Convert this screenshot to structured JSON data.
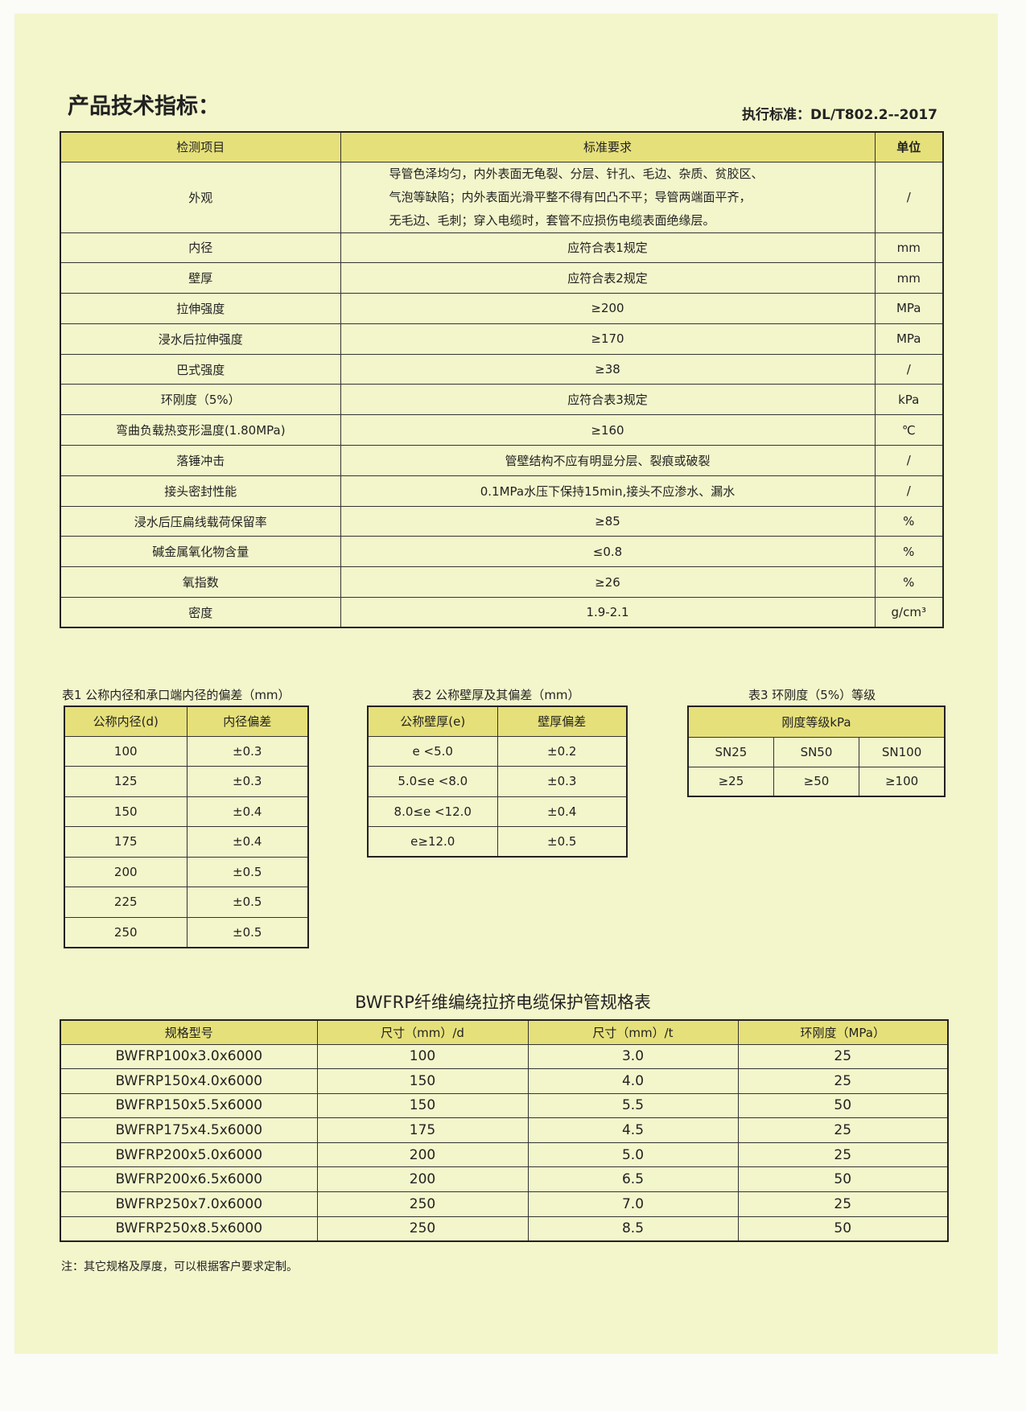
{
  "title": "产品技术指标：",
  "standard": "执行标准：DL/T802.2--2017",
  "colors": {
    "page": "#f3f6cb",
    "header": "#e6e07a"
  },
  "main_table": {
    "headers": [
      "检测项目",
      "标准要求",
      "单位"
    ],
    "appearance": {
      "item": "外观",
      "lines": [
        "导管色泽均匀，内外表面无龟裂、分层、针孔、毛边、杂质、贫胶区、",
        "气泡等缺陷；内外表面光滑平整不得有凹凸不平；导管两端面平齐，",
        "无毛边、毛刺；穿入电缆时，套管不应损伤电缆表面绝缘层。"
      ],
      "unit": "/"
    },
    "rows": [
      [
        "内径",
        "应符合表1规定",
        "mm"
      ],
      [
        "壁厚",
        "应符合表2规定",
        "mm"
      ],
      [
        "拉伸强度",
        "≥200",
        "MPa"
      ],
      [
        "浸水后拉伸强度",
        "≥170",
        "MPa"
      ],
      [
        "巴式强度",
        "≥38",
        "/"
      ],
      [
        "环刚度（5%）",
        "应符合表3规定",
        "kPa"
      ],
      [
        "弯曲负载热变形温度(1.80MPa)",
        "≥160",
        "℃"
      ],
      [
        "落锤冲击",
        "管壁结构不应有明显分层、裂痕或破裂",
        "/"
      ],
      [
        "接头密封性能",
        "0.1MPa水压下保持15min,接头不应渗水、漏水",
        "/"
      ],
      [
        "浸水后压扁线载荷保留率",
        "≥85",
        "%"
      ],
      [
        "碱金属氧化物含量",
        "≤0.8",
        "%"
      ],
      [
        "氧指数",
        "≥26",
        "%"
      ],
      [
        "密度",
        "1.9-2.1",
        "g/cm³"
      ]
    ]
  },
  "table1": {
    "caption": "表1 公称内径和承口端内径的偏差（mm）",
    "headers": [
      "公称内径(d)",
      "内径偏差"
    ],
    "rows": [
      [
        "100",
        "±0.3"
      ],
      [
        "125",
        "±0.3"
      ],
      [
        "150",
        "±0.4"
      ],
      [
        "175",
        "±0.4"
      ],
      [
        "200",
        "±0.5"
      ],
      [
        "225",
        "±0.5"
      ],
      [
        "250",
        "±0.5"
      ]
    ]
  },
  "table2": {
    "caption": "表2 公称壁厚及其偏差（mm）",
    "headers": [
      "公称壁厚(e)",
      "壁厚偏差"
    ],
    "rows": [
      [
        "e <5.0",
        "±0.2"
      ],
      [
        "5.0≤e <8.0",
        "±0.3"
      ],
      [
        "8.0≤e <12.0",
        "±0.4"
      ],
      [
        "e≥12.0",
        "±0.5"
      ]
    ]
  },
  "table3": {
    "caption": "表3 环刚度（5%）等级",
    "header": "刚度等级kPa",
    "grades": [
      "SN25",
      "SN50",
      "SN100"
    ],
    "values": [
      "≥25",
      "≥50",
      "≥100"
    ]
  },
  "spec_table": {
    "title": "BWFRP纤维编绕拉挤电缆保护管规格表",
    "headers": [
      "规格型号",
      "尺寸（mm）/d",
      "尺寸（mm）/t",
      "环刚度（MPa）"
    ],
    "rows": [
      [
        "BWFRP100x3.0x6000",
        "100",
        "3.0",
        "25"
      ],
      [
        "BWFRP150x4.0x6000",
        "150",
        "4.0",
        "25"
      ],
      [
        "BWFRP150x5.5x6000",
        "150",
        "5.5",
        "50"
      ],
      [
        "BWFRP175x4.5x6000",
        "175",
        "4.5",
        "25"
      ],
      [
        "BWFRP200x5.0x6000",
        "200",
        "5.0",
        "25"
      ],
      [
        "BWFRP200x6.5x6000",
        "200",
        "6.5",
        "50"
      ],
      [
        "BWFRP250x7.0x6000",
        "250",
        "7.0",
        "25"
      ],
      [
        "BWFRP250x8.5x6000",
        "250",
        "8.5",
        "50"
      ]
    ]
  },
  "note": "注：其它规格及厚度，可以根据客户要求定制。"
}
